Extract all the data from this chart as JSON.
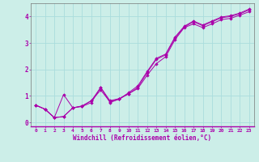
{
  "background_color": "#cceee8",
  "grid_color": "#aadddd",
  "line_color": "#aa00aa",
  "marker_color": "#aa00aa",
  "xlabel": "Windchill (Refroidissement éolien,°C)",
  "xlabel_color": "#aa00aa",
  "tick_color": "#aa00aa",
  "xlim": [
    -0.5,
    23.5
  ],
  "ylim": [
    -0.15,
    4.5
  ],
  "yticks": [
    0,
    1,
    2,
    3,
    4
  ],
  "xticks": [
    0,
    1,
    2,
    3,
    4,
    5,
    6,
    7,
    8,
    9,
    10,
    11,
    12,
    13,
    14,
    15,
    16,
    17,
    18,
    19,
    20,
    21,
    22,
    23
  ],
  "series": [
    {
      "x": [
        0,
        1,
        2,
        3,
        4,
        5,
        6,
        7,
        8,
        9,
        10,
        11,
        12,
        13,
        14,
        15,
        16,
        17,
        18,
        19,
        20,
        21,
        22,
        23
      ],
      "y": [
        0.65,
        0.5,
        0.18,
        0.22,
        0.55,
        0.62,
        0.82,
        1.22,
        0.78,
        0.88,
        1.12,
        1.38,
        1.92,
        2.42,
        2.58,
        3.22,
        3.63,
        3.83,
        3.68,
        3.83,
        3.98,
        4.03,
        4.13,
        4.28
      ]
    },
    {
      "x": [
        0,
        1,
        2,
        3,
        4,
        5,
        6,
        7,
        8,
        9,
        10,
        11,
        12,
        13,
        14,
        15,
        16,
        17,
        18,
        19,
        20,
        21,
        22,
        23
      ],
      "y": [
        0.65,
        0.5,
        0.18,
        1.05,
        0.55,
        0.6,
        0.75,
        1.32,
        0.82,
        0.9,
        1.08,
        1.28,
        1.78,
        2.22,
        2.48,
        3.12,
        3.58,
        3.72,
        3.58,
        3.72,
        3.88,
        3.93,
        4.05,
        4.18
      ]
    },
    {
      "x": [
        0,
        1,
        2,
        3,
        4,
        5,
        6,
        7,
        8,
        9,
        10,
        11,
        12,
        13,
        14,
        15,
        16,
        17,
        18,
        19,
        20,
        21,
        22,
        23
      ],
      "y": [
        0.65,
        0.5,
        0.18,
        0.22,
        0.55,
        0.62,
        0.82,
        1.32,
        0.75,
        0.88,
        1.08,
        1.32,
        1.88,
        2.38,
        2.55,
        3.18,
        3.6,
        3.8,
        3.65,
        3.8,
        3.95,
        4.0,
        4.1,
        4.25
      ]
    }
  ]
}
